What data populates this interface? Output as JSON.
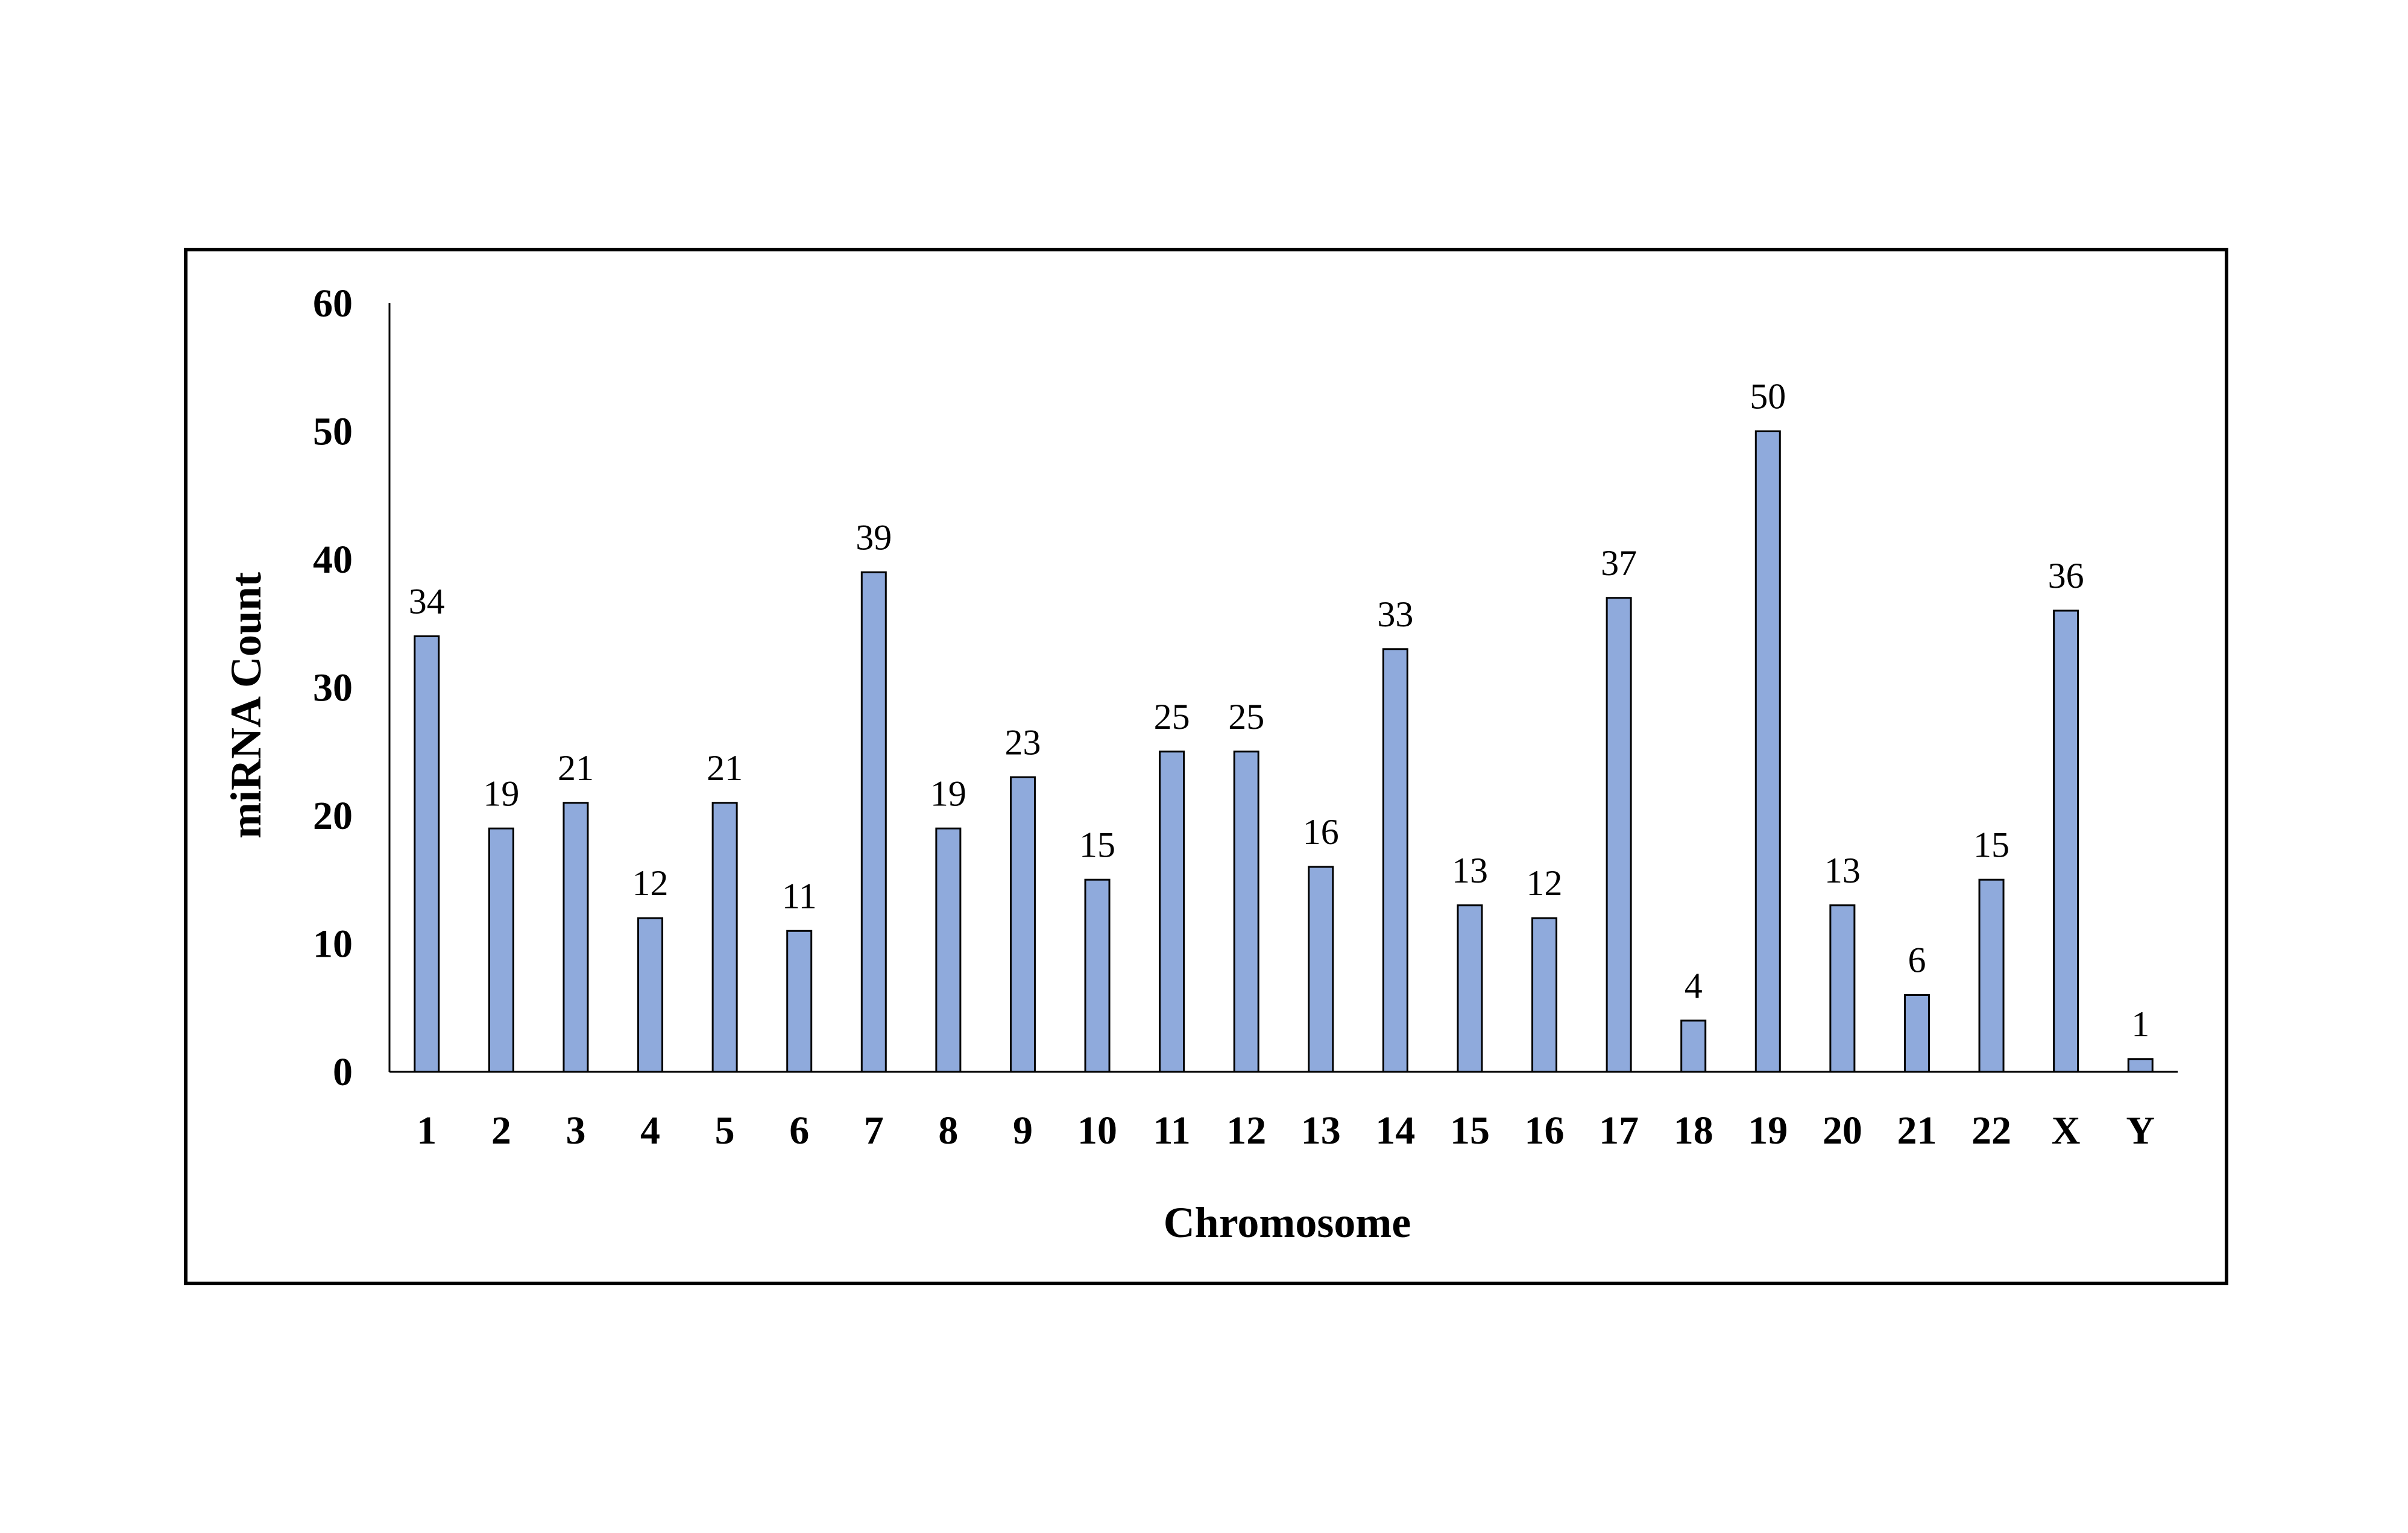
{
  "chart_data": {
    "type": "bar",
    "title": "",
    "xlabel": "Chromosome",
    "ylabel": "miRNA Count",
    "ylim": [
      0,
      60
    ],
    "yticks": [
      "0",
      "10",
      "20",
      "30",
      "40",
      "50",
      "60"
    ],
    "grid": false,
    "legend": "none",
    "categories": [
      "1",
      "2",
      "3",
      "4",
      "5",
      "6",
      "7",
      "8",
      "9",
      "10",
      "11",
      "12",
      "13",
      "14",
      "15",
      "16",
      "17",
      "18",
      "19",
      "20",
      "21",
      "22",
      "X",
      "Y"
    ],
    "values": [
      34,
      19,
      21,
      12,
      21,
      11,
      39,
      19,
      23,
      15,
      25,
      25,
      16,
      33,
      13,
      12,
      37,
      4,
      50,
      13,
      6,
      15,
      36,
      1
    ],
    "data_labels": [
      "34",
      "19",
      "21",
      "12",
      "21",
      "11",
      "39",
      "19",
      "23",
      "15",
      "25",
      "25",
      "16",
      "33",
      "13",
      "12",
      "37",
      "4",
      "50",
      "13",
      "6",
      "15",
      "36",
      "1"
    ],
    "colors": {
      "bar_fill": "#8FAADC",
      "bar_stroke": "#000000",
      "frame": "#000000",
      "axis": "#000000"
    }
  }
}
